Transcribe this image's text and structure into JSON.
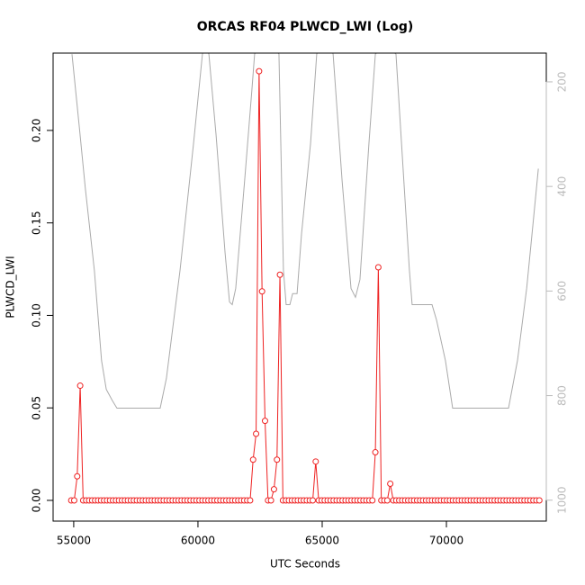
{
  "chart_data": {
    "type": "line",
    "title": "ORCAS RF04 PLWCD_LWI (Log)",
    "x_label": "UTC Seconds",
    "y_label": "PLWCD_LWI",
    "xlim": [
      54170,
      74020
    ],
    "ylim": [
      -0.0112,
      0.2418
    ],
    "y2lim": [
      1040,
      145
    ],
    "xticks": [
      55000,
      60000,
      65000,
      70000
    ],
    "yticks": [
      {
        "value": 0,
        "label": "0.00"
      },
      {
        "value": 0.05,
        "label": "0.05"
      },
      {
        "value": 0.1,
        "label": "0.10"
      },
      {
        "value": 0.15,
        "label": "0.15"
      },
      {
        "value": 0.2,
        "label": "0.20"
      }
    ],
    "y2ticks": [
      200,
      400,
      600,
      800,
      1000
    ],
    "series": [
      {
        "color": "#aaaaaa",
        "axis": "y2",
        "markers": false,
        "x": [
          54930,
          55220,
          55470,
          55830,
          56120,
          56310,
          56560,
          56740,
          58480,
          58730,
          59280,
          59820,
          60180,
          60290,
          60440,
          60730,
          61090,
          61270,
          61380,
          61520,
          61880,
          62170,
          62280,
          62750,
          63260,
          63440,
          63550,
          63700,
          63810,
          63990,
          64170,
          64530,
          64780,
          65110,
          65440,
          65800,
          66160,
          66340,
          66520,
          66880,
          67140,
          67540,
          67970,
          68510,
          68620,
          69420,
          69600,
          69960,
          70250,
          72500,
          72860,
          73230,
          73480,
          73700
        ],
        "values": [
          147,
          284,
          405,
          560,
          733,
          788,
          810,
          824,
          824,
          767,
          560,
          319,
          147,
          130,
          147,
          302,
          526,
          621,
          626,
          595,
          388,
          216,
          147,
          110,
          147,
          560,
          626,
          626,
          605,
          605,
          490,
          319,
          147,
          110,
          147,
          388,
          595,
          612,
          578,
          319,
          147,
          130,
          147,
          560,
          626,
          626,
          655,
          733,
          824,
          824,
          733,
          595,
          474,
          366
        ]
      },
      {
        "color": "#ee2222",
        "markers": true,
        "x": [
          54900,
          55020,
          55140,
          55260,
          55380,
          55500,
          55620,
          55740,
          55860,
          55980,
          56100,
          56220,
          56340,
          56460,
          56580,
          56700,
          56820,
          56940,
          57060,
          57180,
          57300,
          57420,
          57540,
          57660,
          57780,
          57900,
          58020,
          58140,
          58260,
          58380,
          58500,
          58620,
          58740,
          58860,
          58980,
          59100,
          59220,
          59340,
          59460,
          59580,
          59700,
          59820,
          59940,
          60060,
          60180,
          60300,
          60420,
          60540,
          60660,
          60780,
          60900,
          61020,
          61140,
          61260,
          61380,
          61500,
          61620,
          61740,
          61860,
          61980,
          62100,
          62220,
          62340,
          62460,
          62580,
          62700,
          62820,
          62940,
          63060,
          63180,
          63300,
          63420,
          63540,
          63660,
          63780,
          63900,
          64020,
          64140,
          64260,
          64380,
          64500,
          64620,
          64740,
          64860,
          64980,
          65100,
          65220,
          65340,
          65460,
          65580,
          65700,
          65820,
          65940,
          66060,
          66180,
          66300,
          66420,
          66540,
          66660,
          66780,
          66900,
          67020,
          67140,
          67260,
          67380,
          67500,
          67620,
          67740,
          67860,
          67980,
          68100,
          68220,
          68340,
          68460,
          68580,
          68700,
          68820,
          68940,
          69060,
          69180,
          69300,
          69420,
          69540,
          69660,
          69780,
          69900,
          70020,
          70140,
          70260,
          70380,
          70500,
          70620,
          70740,
          70860,
          70980,
          71100,
          71220,
          71340,
          71460,
          71580,
          71700,
          71820,
          71940,
          72060,
          72180,
          72300,
          72420,
          72540,
          72660,
          72780,
          72900,
          73020,
          73140,
          73260,
          73380,
          73500,
          73620,
          73740
        ],
        "values": [
          0,
          0,
          0.013,
          0.062,
          0,
          0,
          0,
          0,
          0,
          0,
          0,
          0,
          0,
          0,
          0,
          0,
          0,
          0,
          0,
          0,
          0,
          0,
          0,
          0,
          0,
          0,
          0,
          0,
          0,
          0,
          0,
          0,
          0,
          0,
          0,
          0,
          0,
          0,
          0,
          0,
          0,
          0,
          0,
          0,
          0,
          0,
          0,
          0,
          0,
          0,
          0,
          0,
          0,
          0,
          0,
          0,
          0,
          0,
          0,
          0,
          0,
          0.022,
          0.036,
          0.232,
          0.113,
          0.043,
          0,
          0,
          0.006,
          0.022,
          0.122,
          0,
          0,
          0,
          0,
          0,
          0,
          0,
          0,
          0,
          0,
          0,
          0.021,
          0,
          0,
          0,
          0,
          0,
          0,
          0,
          0,
          0,
          0,
          0,
          0,
          0,
          0,
          0,
          0,
          0,
          0,
          0,
          0.026,
          0.126,
          0,
          0,
          0,
          0.009,
          0,
          0,
          0,
          0,
          0,
          0,
          0,
          0,
          0,
          0,
          0,
          0,
          0,
          0,
          0,
          0,
          0,
          0,
          0,
          0,
          0,
          0,
          0,
          0,
          0,
          0,
          0,
          0,
          0,
          0,
          0,
          0,
          0,
          0,
          0,
          0,
          0,
          0,
          0,
          0,
          0,
          0,
          0,
          0,
          0,
          0,
          0,
          0,
          0,
          0
        ]
      }
    ]
  }
}
